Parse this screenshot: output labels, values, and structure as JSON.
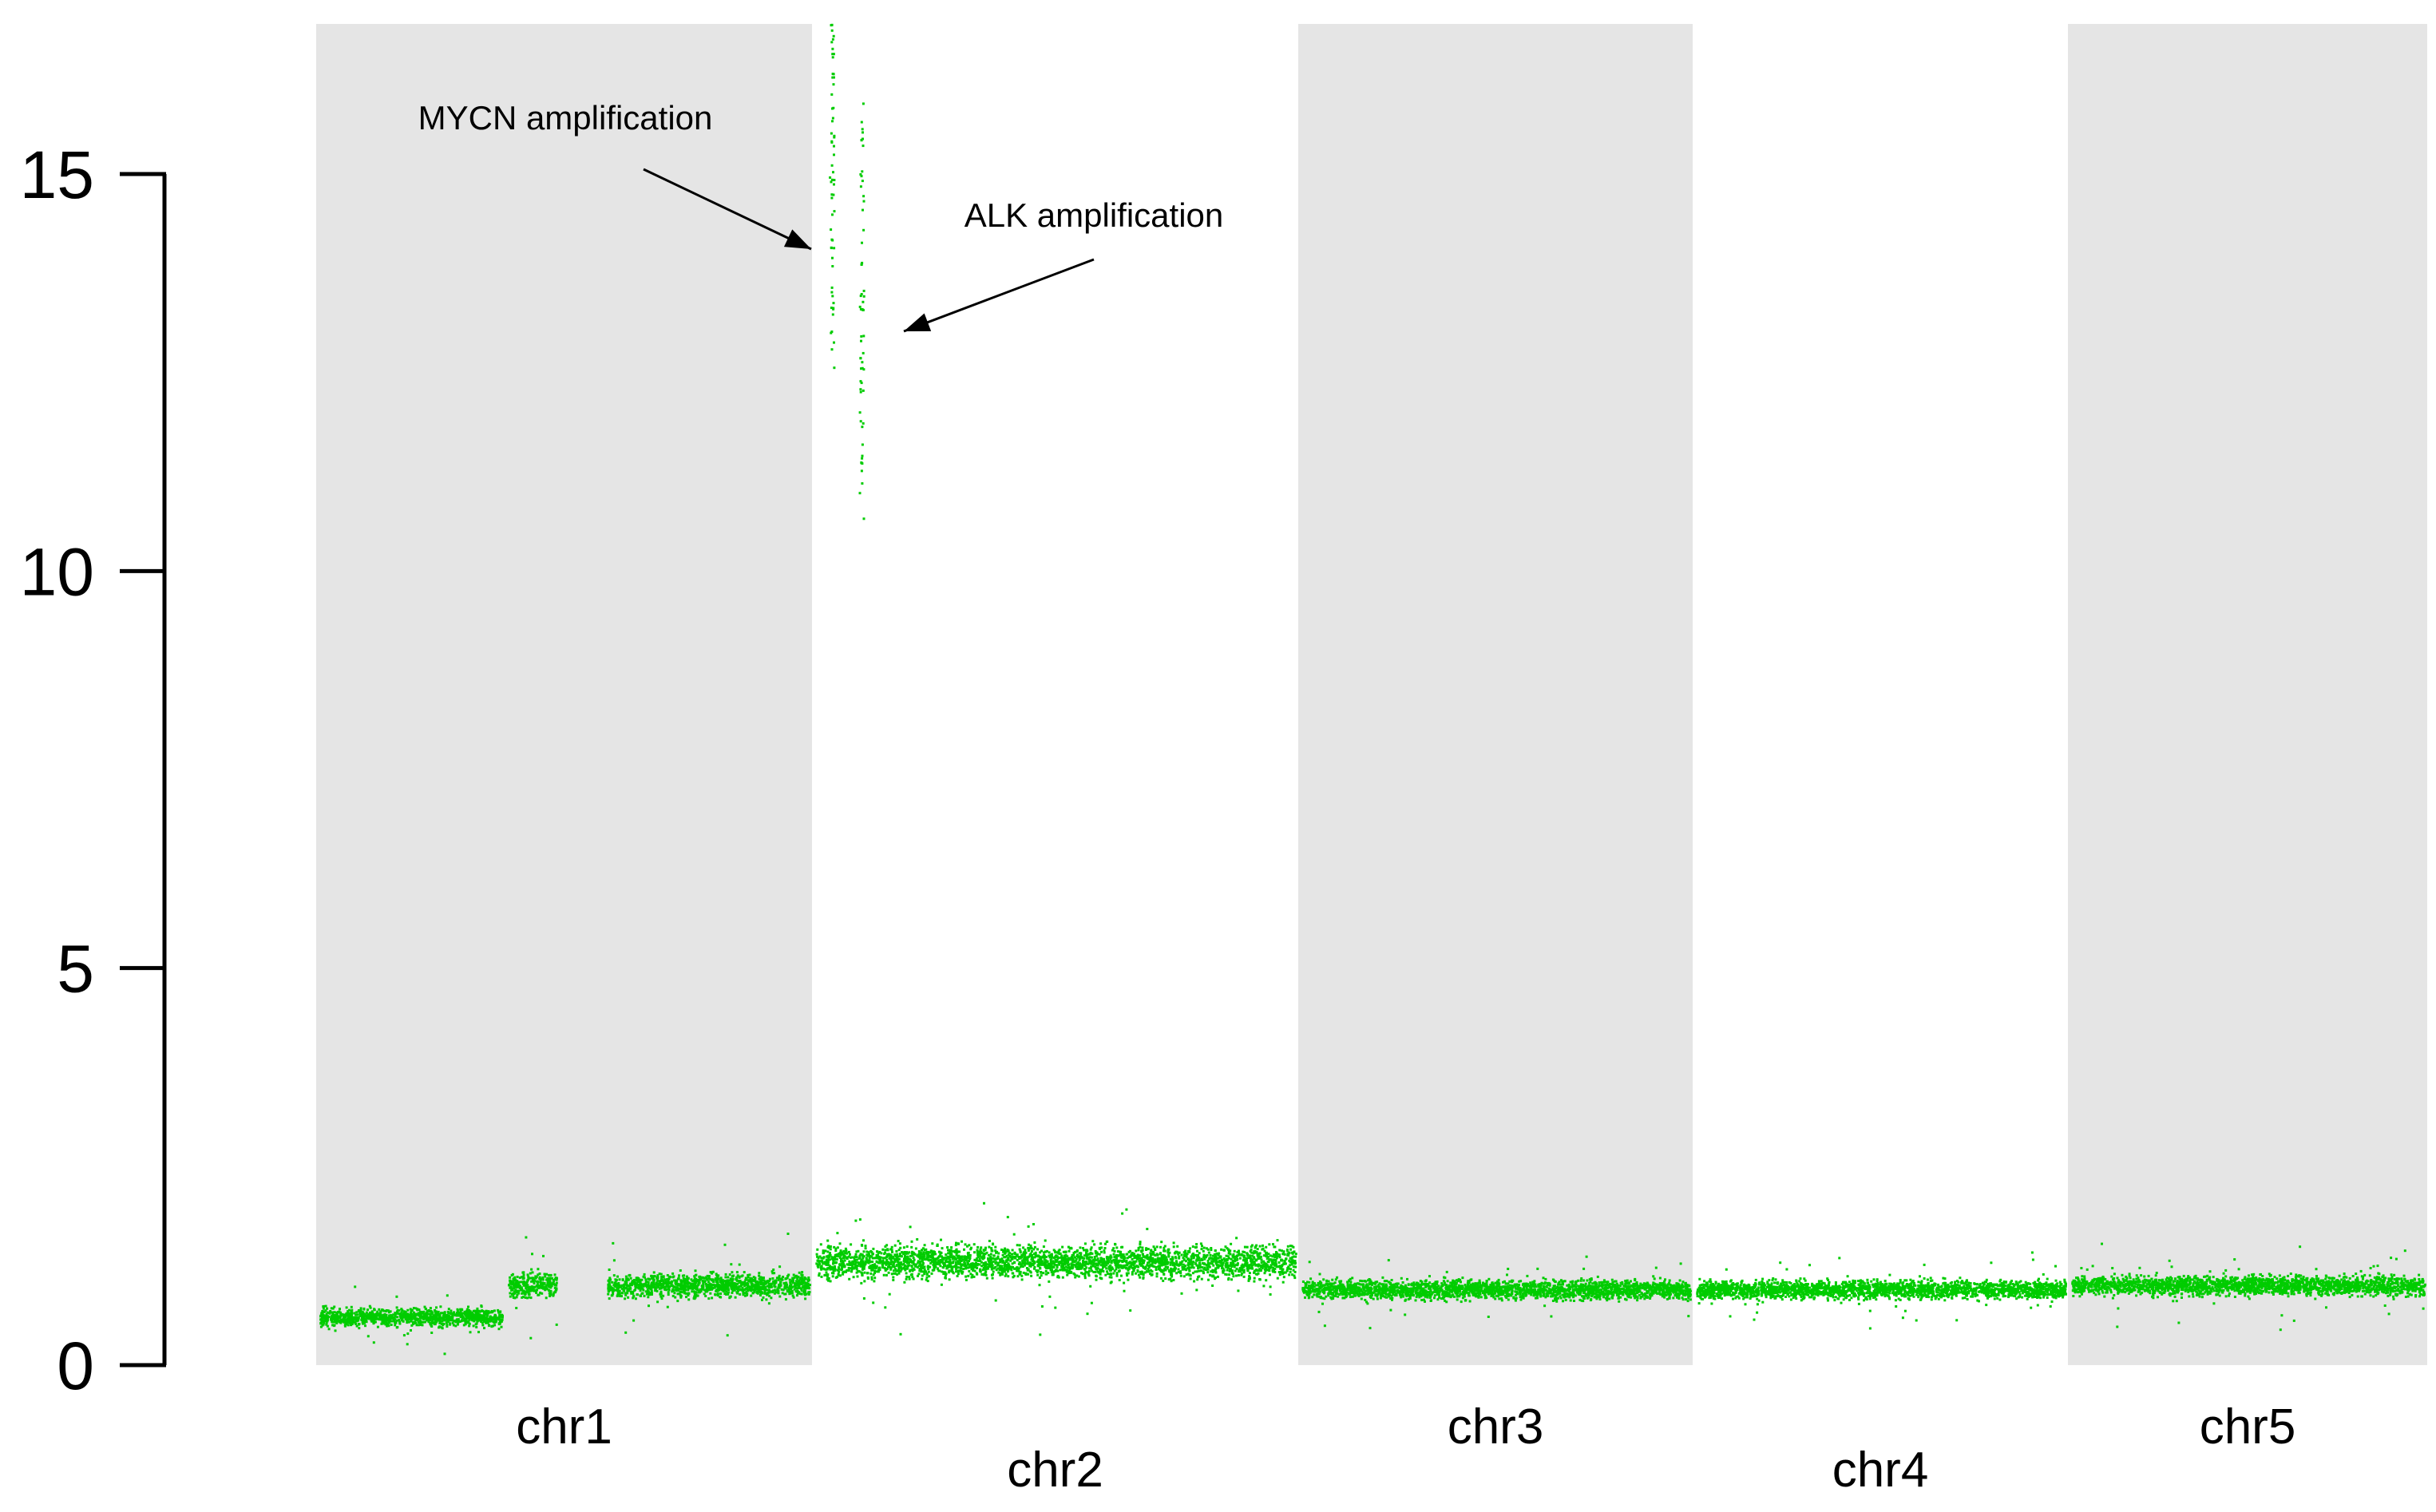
{
  "chart_data": {
    "type": "scatter",
    "title": "",
    "xlabel": "",
    "ylabel": "",
    "ylim": [
      0,
      17
    ],
    "yticks": [
      0,
      5,
      10,
      15
    ],
    "grid": false,
    "point_color": "#00cc00",
    "band_color": "#e5e5e5",
    "chromosomes": [
      {
        "name": "chr1",
        "shaded": true,
        "segments": [
          {
            "from": 0.0,
            "to": 0.38,
            "level": 0.6,
            "spread": 0.14
          },
          {
            "from": 0.38,
            "to": 0.49,
            "level": 1.0,
            "spread": 0.2
          },
          {
            "from": 0.58,
            "to": 1.0,
            "level": 1.0,
            "spread": 0.18
          }
        ]
      },
      {
        "name": "chr2",
        "shaded": false,
        "segments": [
          {
            "from": 0.0,
            "to": 1.0,
            "level": 1.3,
            "spread": 0.26
          }
        ]
      },
      {
        "name": "chr3",
        "shaded": true,
        "segments": [
          {
            "from": 0.0,
            "to": 1.0,
            "level": 0.95,
            "spread": 0.15
          }
        ]
      },
      {
        "name": "chr4",
        "shaded": false,
        "segments": [
          {
            "from": 0.0,
            "to": 1.0,
            "level": 0.95,
            "spread": 0.14
          }
        ]
      },
      {
        "name": "chr5",
        "shaded": true,
        "segments": [
          {
            "from": 0.0,
            "to": 1.0,
            "level": 1.0,
            "spread": 0.15
          }
        ]
      }
    ],
    "amplifications": [
      {
        "label": "MYCN amplification",
        "chromosome": "chr2",
        "pos": 0.04,
        "min": 12.5,
        "max": 16.9
      },
      {
        "label": "ALK amplification",
        "chromosome": "chr2",
        "pos": 0.1,
        "min": 10.5,
        "max": 16.0
      }
    ]
  }
}
